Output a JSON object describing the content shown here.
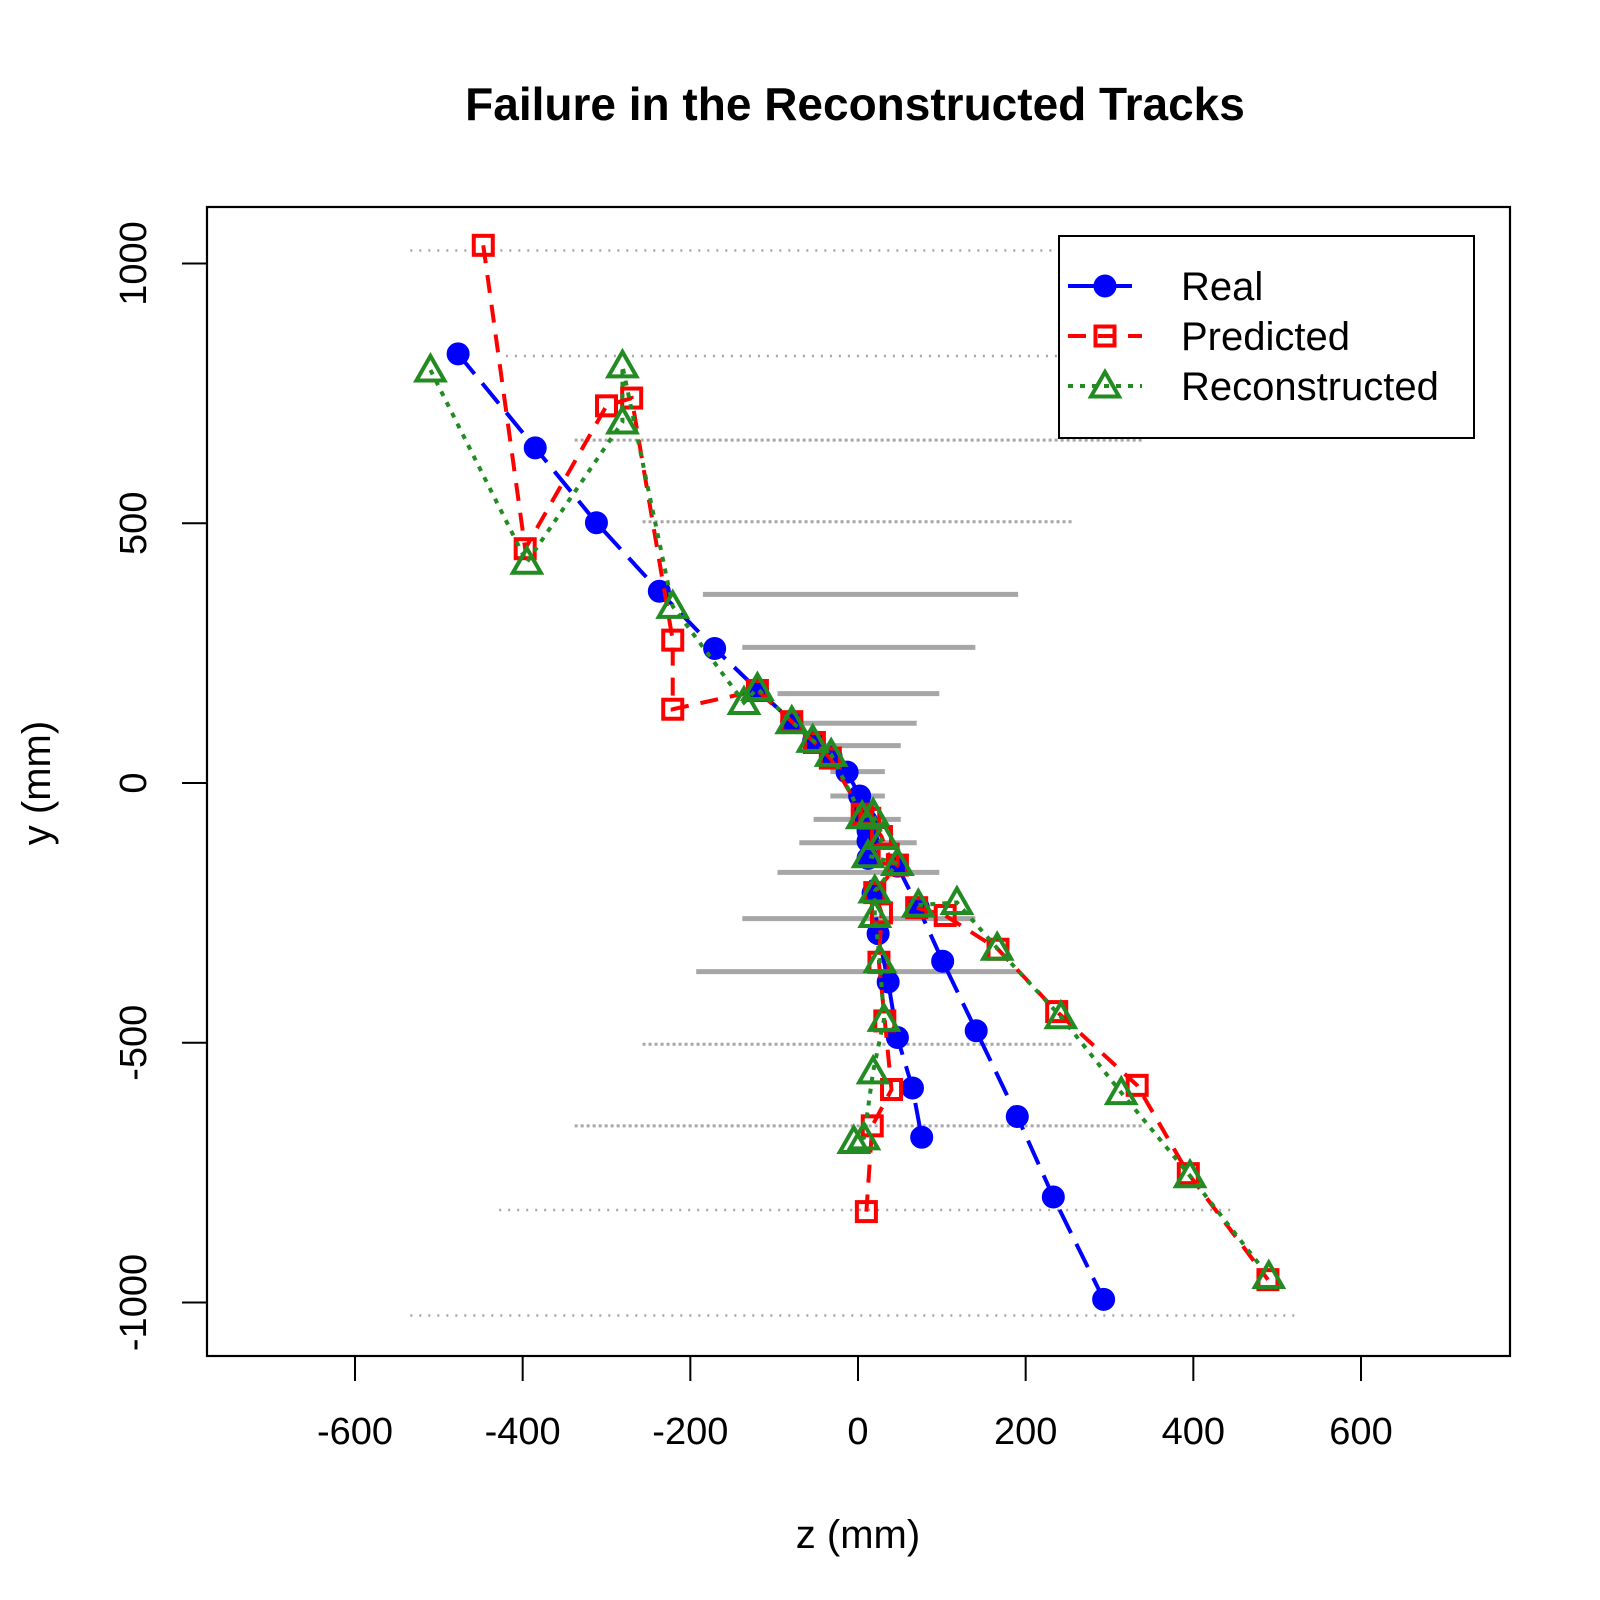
{
  "chart_data": {
    "type": "line",
    "title": "Failure in the Reconstructed Tracks",
    "xlabel": "z (mm)",
    "ylabel": "y (mm)",
    "xlim": [
      -650,
      650
    ],
    "ylim": [
      -1110,
      1110
    ],
    "x_ticks": [
      -600,
      -400,
      -200,
      0,
      200,
      400,
      600
    ],
    "y_ticks": [
      -1000,
      -500,
      0,
      500,
      1000
    ],
    "legend_position": "top-right",
    "grid": false,
    "series": [
      {
        "name": "Real",
        "color": "#0000ff",
        "marker": "filled-circle",
        "line_style": "long-dash",
        "points": [
          [
            -477,
            826
          ],
          [
            -385,
            645
          ],
          [
            -312,
            501
          ],
          [
            -237,
            369
          ],
          [
            -171,
            259
          ],
          [
            -120,
            180
          ],
          [
            -79,
            119
          ],
          [
            -53,
            80
          ],
          [
            -32,
            50
          ],
          [
            -13,
            21
          ],
          [
            2,
            -25
          ],
          [
            6,
            -53
          ],
          [
            10,
            -73
          ],
          [
            12,
            -92
          ],
          [
            12,
            -112
          ],
          [
            12,
            -145
          ],
          [
            18,
            -212
          ],
          [
            24,
            -290
          ],
          [
            36,
            -383
          ],
          [
            47,
            -490
          ],
          [
            65,
            -587
          ],
          [
            76,
            -682
          ]
        ]
      },
      {
        "name": "Real",
        "color": "#0000ff",
        "marker": "filled-circle",
        "line_style": "long-dash",
        "points": [
          [
            47,
            -160
          ],
          [
            72,
            -240
          ],
          [
            101,
            -343
          ],
          [
            141,
            -477
          ],
          [
            190,
            -642
          ],
          [
            233,
            -797
          ],
          [
            293,
            -994
          ]
        ]
      },
      {
        "name": "Predicted",
        "color": "#ff0000",
        "marker": "open-square",
        "line_style": "dashed",
        "points": [
          [
            -447,
            1035
          ],
          [
            -397,
            451
          ],
          [
            -300,
            726
          ],
          [
            -270,
            741
          ],
          [
            -221,
            275
          ],
          [
            -221,
            142
          ],
          [
            -120,
            178
          ],
          [
            -79,
            118
          ],
          [
            -52,
            78
          ],
          [
            -33,
            48
          ],
          [
            5,
            -60
          ],
          [
            14,
            -68
          ],
          [
            28,
            -103
          ],
          [
            36,
            -137
          ],
          [
            47,
            -158
          ],
          [
            20,
            -211
          ],
          [
            28,
            -250
          ],
          [
            25,
            -345
          ],
          [
            32,
            -458
          ],
          [
            40,
            -590
          ],
          [
            17,
            -660
          ],
          [
            10,
            -825
          ]
        ]
      },
      {
        "name": "Predicted",
        "color": "#ff0000",
        "marker": "open-square",
        "line_style": "dashed",
        "points": [
          [
            70,
            -240
          ],
          [
            104,
            -255
          ],
          [
            167,
            -320
          ],
          [
            237,
            -440
          ],
          [
            333,
            -582
          ],
          [
            394,
            -752
          ],
          [
            489,
            -956
          ]
        ]
      },
      {
        "name": "Reconstructed",
        "color": "#228b22",
        "marker": "open-triangle",
        "line_style": "dotted",
        "points": [
          [
            -510,
            795
          ],
          [
            -395,
            425
          ],
          [
            -281,
            695
          ],
          [
            -281,
            803
          ],
          [
            -221,
            340
          ],
          [
            -136,
            155
          ],
          [
            -120,
            182
          ],
          [
            -79,
            118
          ],
          [
            -54,
            82
          ],
          [
            -32,
            55
          ],
          [
            5,
            -65
          ],
          [
            18,
            -60
          ],
          [
            30,
            -105
          ],
          [
            12,
            -140
          ],
          [
            47,
            -155
          ],
          [
            20,
            -208
          ],
          [
            20,
            -255
          ],
          [
            26,
            -342
          ],
          [
            31,
            -455
          ],
          [
            18,
            -556
          ],
          [
            7,
            -683
          ],
          [
            -5,
            -690
          ]
        ]
      },
      {
        "name": "Reconstructed",
        "color": "#228b22",
        "marker": "open-triangle",
        "line_style": "dotted",
        "points": [
          [
            72,
            -235
          ],
          [
            118,
            -230
          ],
          [
            166,
            -318
          ],
          [
            242,
            -450
          ],
          [
            314,
            -596
          ],
          [
            396,
            -756
          ],
          [
            490,
            -950
          ]
        ]
      }
    ],
    "background_hits": {
      "color": "#a6a6a6",
      "rows": [
        {
          "y": 1025,
          "z_range": [
            -534,
            499
          ],
          "density": "sparse"
        },
        {
          "y": 822,
          "z_range": [
            -420,
            540
          ],
          "density": "sparse"
        },
        {
          "y": 660,
          "z_range": [
            -338,
            340
          ],
          "density": "medium"
        },
        {
          "y": 503,
          "z_range": [
            -257,
            258
          ],
          "density": "medium"
        },
        {
          "y": 363,
          "z_range": [
            -185,
            191
          ],
          "density": "dense"
        },
        {
          "y": 261,
          "z_range": [
            -138,
            140
          ],
          "density": "dense"
        },
        {
          "y": 172,
          "z_range": [
            -96,
            97
          ],
          "density": "dense"
        },
        {
          "y": 115,
          "z_range": [
            -70,
            70
          ],
          "density": "dense"
        },
        {
          "y": 72,
          "z_range": [
            -53,
            51
          ],
          "density": "dense"
        },
        {
          "y": 22,
          "z_range": [
            -33,
            32
          ],
          "density": "dense"
        },
        {
          "y": -25,
          "z_range": [
            -33,
            32
          ],
          "density": "dense"
        },
        {
          "y": -70,
          "z_range": [
            -53,
            51
          ],
          "density": "dense"
        },
        {
          "y": -115,
          "z_range": [
            -70,
            70
          ],
          "density": "dense"
        },
        {
          "y": -172,
          "z_range": [
            -96,
            97
          ],
          "density": "dense"
        },
        {
          "y": -261,
          "z_range": [
            -138,
            140
          ],
          "density": "dense"
        },
        {
          "y": -363,
          "z_range": [
            -193,
            191
          ],
          "density": "dense"
        },
        {
          "y": -503,
          "z_range": [
            -257,
            258
          ],
          "density": "medium"
        },
        {
          "y": -660,
          "z_range": [
            -338,
            340
          ],
          "density": "medium"
        },
        {
          "y": -822,
          "z_range": [
            -428,
            448
          ],
          "density": "sparse"
        },
        {
          "y": -1025,
          "z_range": [
            -534,
            524
          ],
          "density": "sparse"
        }
      ]
    }
  }
}
